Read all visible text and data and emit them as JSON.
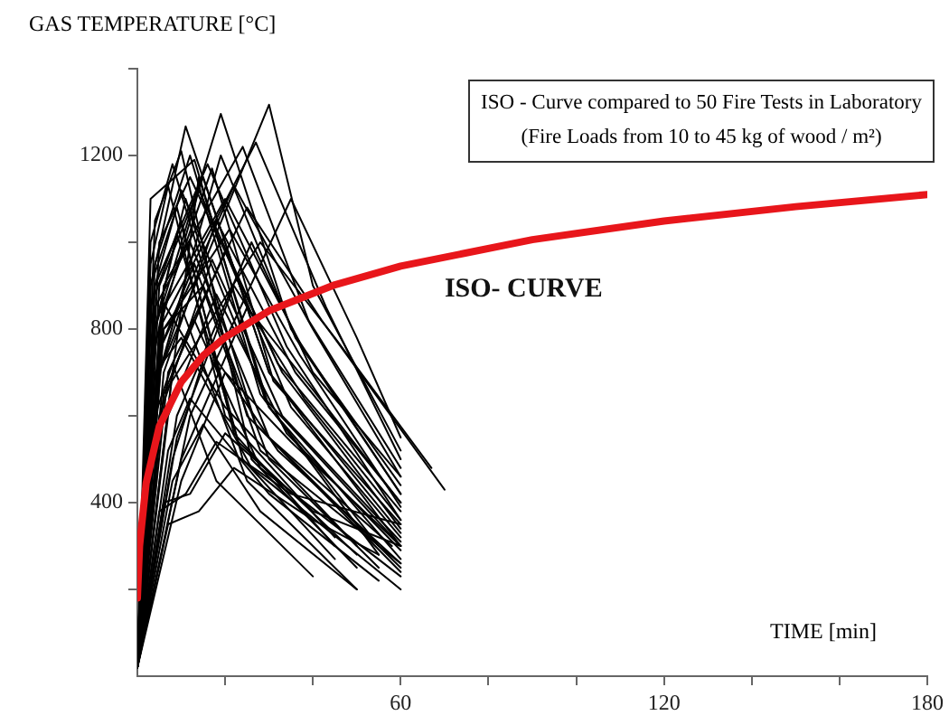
{
  "chart_data": {
    "type": "line",
    "xlabel": "TIME  [min]",
    "ylabel": "GAS TEMPERATURE  [°C]",
    "annotations": [
      "ISO - Curve compared to 50 Fire Tests in Laboratory",
      "(Fire Loads from 10 to 45 kg of wood / m²)"
    ],
    "xlim": [
      0,
      180
    ],
    "xticks": [
      {
        "value": 20,
        "label": null
      },
      {
        "value": 40,
        "label": null
      },
      60,
      {
        "value": 80,
        "label": null
      },
      {
        "value": 100,
        "label": null
      },
      120,
      {
        "value": 140,
        "label": null
      },
      {
        "value": 160,
        "label": null
      },
      180
    ],
    "ylim": [
      0,
      1400
    ],
    "yticks": [
      {
        "value": 200,
        "label": null
      },
      400,
      {
        "value": 600,
        "label": null
      },
      800,
      {
        "value": 1000,
        "label": null
      },
      1200,
      {
        "value": 1400,
        "label": null
      }
    ],
    "grid": false,
    "legend": false,
    "marker": "none",
    "line_style": "solid",
    "series": [
      {
        "color": "#000000",
        "x": [
          0,
          3,
          11,
          30,
          60
        ],
        "values": [
          20,
          900,
          1267,
          700,
          300
        ]
      },
      {
        "color": "#000000",
        "x": [
          0,
          4,
          19,
          35,
          60
        ],
        "values": [
          20,
          800,
          1296,
          800,
          420
        ]
      },
      {
        "color": "#000000",
        "x": [
          0,
          5,
          30,
          40,
          60
        ],
        "values": [
          20,
          700,
          1317,
          900,
          520
        ]
      },
      {
        "color": "#000000",
        "x": [
          0,
          3,
          8,
          25,
          60
        ],
        "values": [
          20,
          1000,
          1180,
          600,
          250
        ]
      },
      {
        "color": "#000000",
        "x": [
          0,
          4,
          12,
          28,
          55
        ],
        "values": [
          20,
          950,
          1200,
          650,
          280
        ]
      },
      {
        "color": "#000000",
        "x": [
          0,
          5,
          15,
          30,
          60
        ],
        "values": [
          20,
          900,
          1150,
          700,
          330
        ]
      },
      {
        "color": "#000000",
        "x": [
          0,
          6,
          20,
          38,
          60
        ],
        "values": [
          20,
          850,
          1100,
          750,
          440
        ]
      },
      {
        "color": "#000000",
        "x": [
          0,
          4,
          10,
          26,
          50
        ],
        "values": [
          20,
          1050,
          1210,
          500,
          250
        ]
      },
      {
        "color": "#000000",
        "x": [
          0,
          5,
          14,
          32,
          60
        ],
        "values": [
          20,
          800,
          1120,
          720,
          380
        ]
      },
      {
        "color": "#000000",
        "x": [
          0,
          3,
          9,
          24,
          45
        ],
        "values": [
          20,
          900,
          1080,
          500,
          270
        ]
      },
      {
        "color": "#000000",
        "x": [
          0,
          6,
          18,
          36,
          60
        ],
        "values": [
          20,
          700,
          1050,
          700,
          400
        ]
      },
      {
        "color": "#000000",
        "x": [
          0,
          4,
          16,
          34,
          60
        ],
        "values": [
          20,
          900,
          1180,
          760,
          360
        ]
      },
      {
        "color": "#000000",
        "x": [
          0,
          5,
          22,
          40,
          60
        ],
        "values": [
          20,
          750,
          1130,
          800,
          460
        ]
      },
      {
        "color": "#000000",
        "x": [
          0,
          7,
          25,
          42,
          70
        ],
        "values": [
          20,
          700,
          1080,
          820,
          430
        ]
      },
      {
        "color": "#000000",
        "x": [
          0,
          6,
          28,
          45,
          67
        ],
        "values": [
          20,
          650,
          1000,
          780,
          480
        ]
      },
      {
        "color": "#000000",
        "x": [
          0,
          4,
          12,
          30,
          58
        ],
        "values": [
          20,
          850,
          1000,
          550,
          300
        ]
      },
      {
        "color": "#000000",
        "x": [
          0,
          5,
          13,
          28,
          60
        ],
        "values": [
          20,
          750,
          950,
          520,
          260
        ]
      },
      {
        "color": "#000000",
        "x": [
          0,
          3,
          10,
          22,
          45
        ],
        "values": [
          20,
          850,
          1050,
          560,
          300
        ]
      },
      {
        "color": "#000000",
        "x": [
          0,
          8,
          20,
          35,
          60
        ],
        "values": [
          20,
          700,
          980,
          620,
          320
        ]
      },
      {
        "color": "#000000",
        "x": [
          0,
          6,
          15,
          30,
          55
        ],
        "values": [
          20,
          800,
          900,
          500,
          250
        ]
      },
      {
        "color": "#000000",
        "x": [
          0,
          5,
          10,
          25,
          50
        ],
        "values": [
          20,
          700,
          850,
          450,
          200
        ]
      },
      {
        "color": "#000000",
        "x": [
          0,
          7,
          18,
          34,
          60
        ],
        "values": [
          20,
          600,
          880,
          560,
          290
        ]
      },
      {
        "color": "#000000",
        "x": [
          0,
          9,
          22,
          38,
          60
        ],
        "values": [
          20,
          550,
          900,
          640,
          360
        ]
      },
      {
        "color": "#000000",
        "x": [
          0,
          10,
          25,
          40,
          60
        ],
        "values": [
          20,
          500,
          850,
          660,
          400
        ]
      },
      {
        "color": "#000000",
        "x": [
          0,
          8,
          14,
          30,
          55
        ],
        "values": [
          20,
          700,
          1150,
          620,
          300
        ]
      },
      {
        "color": "#000000",
        "x": [
          0,
          4,
          11,
          27,
          60
        ],
        "values": [
          20,
          800,
          1100,
          580,
          240
        ]
      },
      {
        "color": "#000000",
        "x": [
          0,
          6,
          17,
          31,
          60
        ],
        "values": [
          20,
          850,
          1170,
          680,
          350
        ]
      },
      {
        "color": "#000000",
        "x": [
          0,
          5,
          19,
          36,
          60
        ],
        "values": [
          20,
          700,
          1200,
          780,
          420
        ]
      },
      {
        "color": "#000000",
        "x": [
          0,
          3,
          7,
          20,
          45
        ],
        "values": [
          20,
          950,
          1130,
          600,
          320
        ]
      },
      {
        "color": "#000000",
        "x": [
          0,
          4,
          9,
          23,
          50
        ],
        "values": [
          20,
          800,
          1020,
          540,
          280
        ]
      },
      {
        "color": "#000000",
        "x": [
          0,
          6,
          13,
          28,
          60
        ],
        "values": [
          20,
          650,
          820,
          480,
          230
        ]
      },
      {
        "color": "#000000",
        "x": [
          0,
          8,
          16,
          32,
          60
        ],
        "values": [
          20,
          500,
          760,
          520,
          260
        ]
      },
      {
        "color": "#000000",
        "x": [
          0,
          10,
          20,
          35,
          60
        ],
        "values": [
          20,
          450,
          700,
          540,
          300
        ]
      },
      {
        "color": "#000000",
        "x": [
          0,
          7,
          12,
          30,
          55
        ],
        "values": [
          20,
          520,
          640,
          420,
          220
        ]
      },
      {
        "color": "#000000",
        "x": [
          0,
          8,
          15,
          28,
          50
        ],
        "values": [
          20,
          450,
          580,
          380,
          200
        ]
      },
      {
        "color": "#000000",
        "x": [
          0,
          6,
          12,
          20,
          40,
          60
        ],
        "values": [
          20,
          400,
          420,
          560,
          380,
          300
        ]
      },
      {
        "color": "#000000",
        "x": [
          0,
          5,
          11,
          18,
          35,
          60
        ],
        "values": [
          20,
          380,
          420,
          540,
          420,
          350
        ]
      },
      {
        "color": "#000000",
        "x": [
          0,
          7,
          14,
          22,
          40,
          55
        ],
        "values": [
          20,
          350,
          380,
          480,
          360,
          280
        ]
      },
      {
        "color": "#000000",
        "x": [
          0,
          4,
          10,
          30,
          60
        ],
        "values": [
          20,
          900,
          1120,
          620,
          270
        ]
      },
      {
        "color": "#000000",
        "x": [
          0,
          5,
          12,
          33,
          60
        ],
        "values": [
          20,
          1000,
          1150,
          700,
          340
        ]
      },
      {
        "color": "#000000",
        "x": [
          0,
          3,
          6,
          20,
          50
        ],
        "values": [
          20,
          700,
          860,
          620,
          300
        ]
      },
      {
        "color": "#000000",
        "x": [
          0,
          6,
          21,
          37,
          60
        ],
        "values": [
          20,
          800,
          1030,
          740,
          390
        ]
      },
      {
        "color": "#000000",
        "x": [
          0,
          5,
          17,
          33,
          60
        ],
        "values": [
          20,
          600,
          960,
          600,
          310
        ]
      },
      {
        "color": "#000000",
        "x": [
          0,
          9,
          26,
          40,
          60
        ],
        "values": [
          20,
          600,
          1000,
          700,
          460
        ]
      },
      {
        "color": "#000000",
        "x": [
          0,
          4,
          8,
          18,
          40
        ],
        "values": [
          20,
          600,
          720,
          450,
          230
        ]
      },
      {
        "color": "#000000",
        "x": [
          0,
          3,
          13,
          29,
          60
        ],
        "values": [
          20,
          1100,
          1190,
          640,
          300
        ]
      },
      {
        "color": "#000000",
        "x": [
          0,
          6,
          24,
          39,
          60
        ],
        "values": [
          20,
          900,
          1220,
          820,
          480
        ]
      },
      {
        "color": "#000000",
        "x": [
          0,
          5,
          27,
          43,
          60
        ],
        "values": [
          20,
          800,
          1230,
          850,
          500
        ]
      },
      {
        "color": "#000000",
        "x": [
          0,
          12,
          35,
          50,
          60
        ],
        "values": [
          20,
          600,
          1100,
          780,
          550
        ]
      },
      {
        "color": "#000000",
        "x": [
          0,
          4,
          10,
          26,
          60
        ],
        "values": [
          20,
          700,
          780,
          480,
          200
        ]
      },
      {
        "name": "ISO- CURVE",
        "color": "#e8161b",
        "x": [
          0,
          0.5,
          1,
          2,
          5,
          10,
          15,
          20,
          30,
          45,
          60,
          90,
          120,
          150,
          180
        ],
        "values": [
          180,
          300,
          350,
          445,
          576,
          678,
          739,
          781,
          842,
          902,
          945,
          1006,
          1049,
          1082,
          1110
        ]
      }
    ]
  }
}
